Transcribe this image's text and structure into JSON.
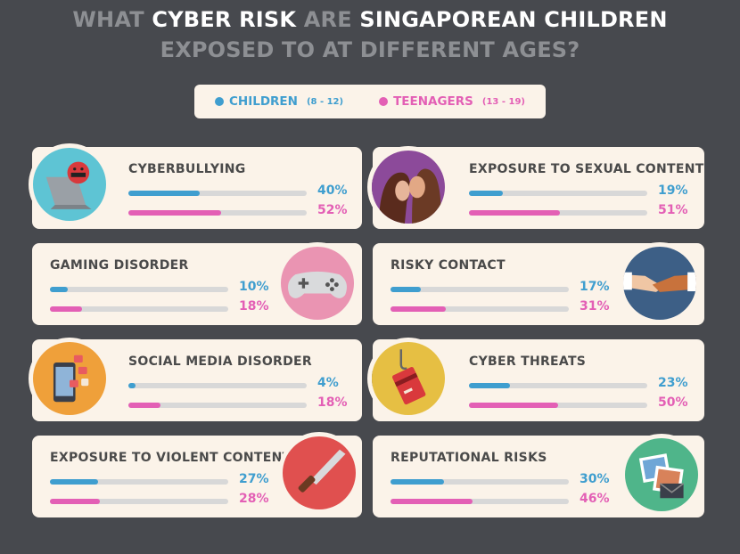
{
  "title": {
    "line1": [
      {
        "text": "WHAT ",
        "hi": false
      },
      {
        "text": "CYBER RISK ",
        "hi": true
      },
      {
        "text": "ARE ",
        "hi": false
      },
      {
        "text": "SINGAPOREAN CHILDREN",
        "hi": true
      }
    ],
    "line2": "EXPOSED TO AT DIFFERENT AGES?"
  },
  "legend": {
    "children_label": "CHILDREN",
    "children_range": "(8 - 12)",
    "teen_label": "TEENAGERS",
    "teen_range": "(13 - 19)"
  },
  "colors": {
    "children": "#3f9ecf",
    "teenagers": "#e35fb5",
    "background": "#47494e",
    "card": "#fbf3e9"
  },
  "chart_data": {
    "type": "bar",
    "orientation": "horizontal",
    "unit": "%",
    "xlim": [
      0,
      100
    ],
    "series": [
      {
        "name": "CHILDREN (8 - 12)"
      },
      {
        "name": "TEENAGERS (13 - 19)"
      }
    ],
    "categories": [
      {
        "label": "CYBERBULLYING",
        "children": 40,
        "teenagers": 52,
        "children_text": "40%",
        "teen_text": "52%",
        "icon": "laptop-angry-icon"
      },
      {
        "label": "EXPOSURE TO SEXUAL CONTENT",
        "children": 19,
        "teenagers": 51,
        "children_text": "19%",
        "teen_text": "51%",
        "icon": "couple-icon"
      },
      {
        "label": "GAMING DISORDER",
        "children": 10,
        "teenagers": 18,
        "children_text": "10%",
        "teen_text": "18%",
        "icon": "game-controller-icon"
      },
      {
        "label": "RISKY CONTACT",
        "children": 17,
        "teenagers": 31,
        "children_text": "17%",
        "teen_text": "31%",
        "icon": "handshake-icon"
      },
      {
        "label": "SOCIAL MEDIA DISORDER",
        "children": 4,
        "teenagers": 18,
        "children_text": "4%",
        "teen_text": "18%",
        "icon": "phone-likes-icon"
      },
      {
        "label": "CYBER THREATS",
        "children": 23,
        "teenagers": 50,
        "children_text": "23%",
        "teen_text": "50%",
        "icon": "phishing-card-icon"
      },
      {
        "label": "EXPOSURE TO VIOLENT CONTENT",
        "children": 27,
        "teenagers": 28,
        "children_text": "27%",
        "teen_text": "28%",
        "icon": "knife-icon"
      },
      {
        "label": "REPUTATIONAL RISKS",
        "children": 30,
        "teenagers": 46,
        "children_text": "30%",
        "teen_text": "46%",
        "icon": "photos-envelope-icon"
      }
    ]
  }
}
